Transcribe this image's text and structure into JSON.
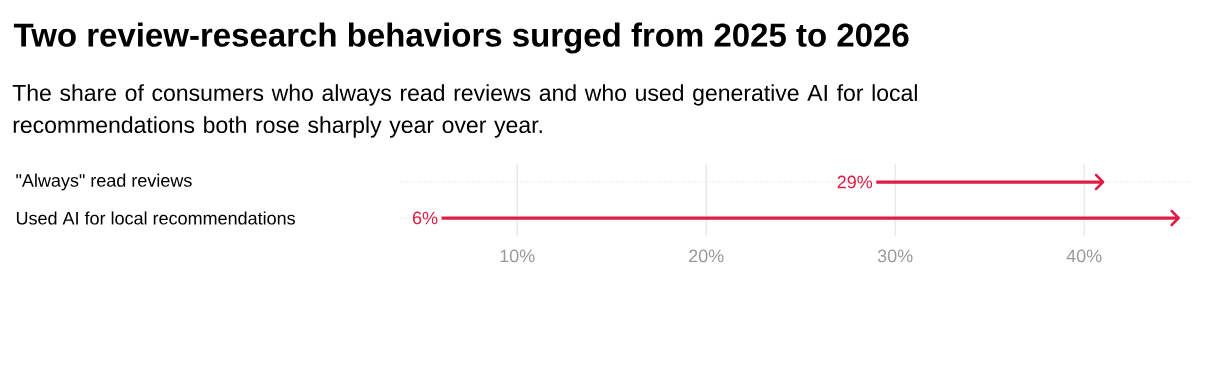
{
  "chart_data": {
    "type": "bar",
    "orientation": "horizontal",
    "title": "Two review-research behaviors surged from 2025 to 2026",
    "subtitle": "The share of consumers who always read reviews and who used generative AI for local recommendations both rose sharply year over year.",
    "categories": [
      "\"Always\" read reviews",
      "Used AI for local recommendations"
    ],
    "base": [
      29,
      6
    ],
    "values": [
      12,
      39
    ],
    "color": "#dc1e46",
    "xlim": [
      3.8,
      45.6
    ],
    "xticks": [
      {
        "value": 10,
        "label": "10%"
      },
      {
        "value": 20,
        "label": "20%"
      },
      {
        "value": 30,
        "label": "30%"
      },
      {
        "value": 40,
        "label": "40%"
      }
    ],
    "grid": true,
    "annotations": [
      {
        "text": "29%",
        "x": 29,
        "y": "\"Always\" read reviews"
      },
      {
        "text": "6%",
        "x": 6,
        "y": "Used AI for local recommendations"
      }
    ]
  }
}
